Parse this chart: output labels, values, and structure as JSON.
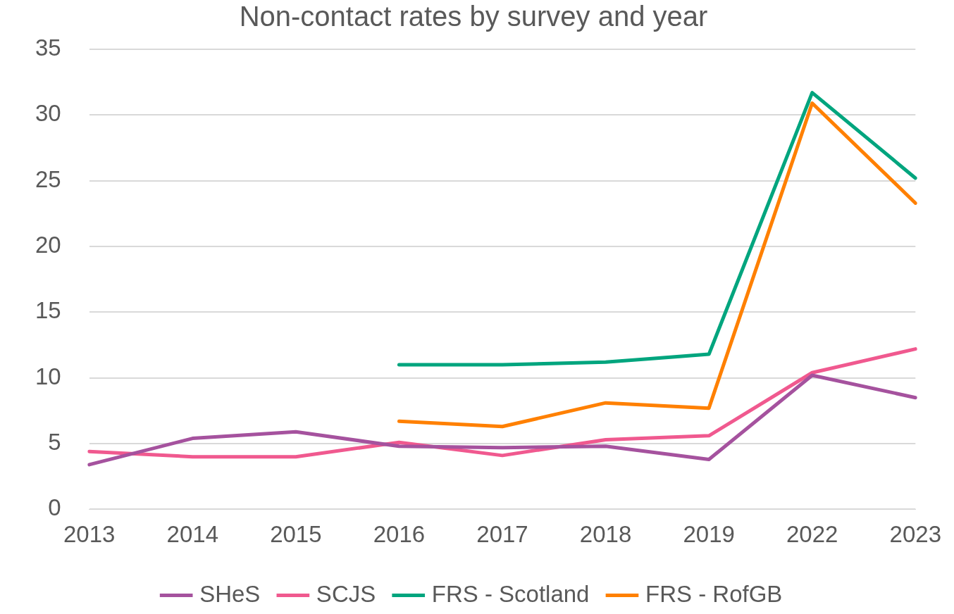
{
  "chart_data": {
    "type": "line",
    "title": "Non-contact rates by survey and year",
    "categories": [
      "2013",
      "2014",
      "2015",
      "2016",
      "2017",
      "2018",
      "2019",
      "2022",
      "2023"
    ],
    "series": [
      {
        "name": "SHeS",
        "color": "#a5529e",
        "values": [
          3.4,
          5.4,
          5.9,
          4.8,
          4.7,
          4.8,
          3.8,
          10.2,
          8.5
        ]
      },
      {
        "name": "SCJS",
        "color": "#f0598f",
        "values": [
          4.4,
          4.0,
          4.0,
          5.1,
          4.1,
          5.3,
          5.6,
          10.4,
          12.2
        ]
      },
      {
        "name": "FRS - Scotland",
        "color": "#00a57e",
        "values": [
          null,
          null,
          null,
          11.0,
          11.0,
          11.2,
          11.8,
          31.7,
          25.2
        ]
      },
      {
        "name": "FRS - RofGB",
        "color": "#ff8000",
        "values": [
          null,
          null,
          null,
          6.7,
          6.3,
          8.1,
          7.7,
          30.9,
          23.3
        ]
      }
    ],
    "ylim": [
      0,
      35
    ],
    "yticks": [
      0,
      5,
      10,
      15,
      20,
      25,
      30,
      35
    ],
    "grid": "y",
    "legend": "bottom",
    "marker": "none",
    "line_style": "solid"
  }
}
